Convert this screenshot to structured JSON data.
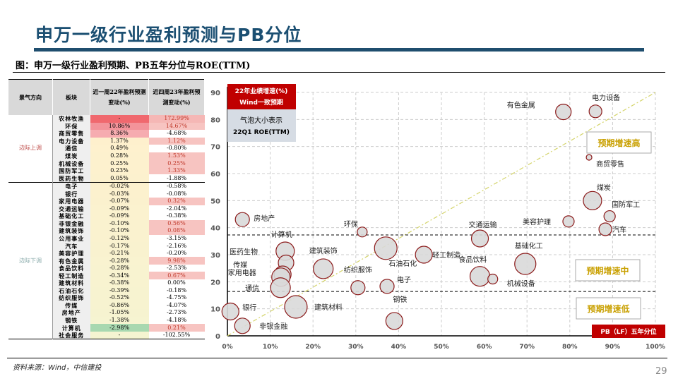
{
  "header": {
    "title": "申万一级行业盈利预测与PB分位",
    "subtitle": "图：申万一级行业盈利预期、PB五年分位与ROE(TTM)"
  },
  "table": {
    "columns": [
      "景气方向",
      "板块",
      "近一周22年盈利预测变动(%)",
      "近四周23年盈利预测变动(%)"
    ],
    "groups": [
      {
        "direction": "边际上调",
        "rows": [
          [
            "农林牧渔",
            "-",
            "172.99%"
          ],
          [
            "环保",
            "10.86%",
            "14.67%"
          ],
          [
            "商贸零售",
            "8.36%",
            "-4.68%"
          ],
          [
            "电力设备",
            "1.37%",
            "1.12%"
          ],
          [
            "通信",
            "0.49%",
            "-0.80%"
          ],
          [
            "煤炭",
            "0.28%",
            "1.53%"
          ],
          [
            "机械设备",
            "0.25%",
            "0.25%"
          ],
          [
            "国防军工",
            "0.23%",
            "1.33%"
          ],
          [
            "医药生物",
            "0.05%",
            "-1.88%"
          ]
        ]
      },
      {
        "direction": "边际下调",
        "rows": [
          [
            "电子",
            "-0.02%",
            "-0.58%"
          ],
          [
            "银行",
            "-0.03%",
            "-0.08%"
          ],
          [
            "家用电器",
            "-0.07%",
            "0.32%"
          ],
          [
            "交通运输",
            "-0.09%",
            "-2.04%"
          ],
          [
            "基础化工",
            "-0.09%",
            "-0.38%"
          ],
          [
            "非银金融",
            "-0.10%",
            "0.56%"
          ],
          [
            "建筑装饰",
            "-0.10%",
            "0.08%"
          ],
          [
            "公用事业",
            "-0.12%",
            "-3.15%"
          ],
          [
            "汽车",
            "-0.17%",
            "-2.16%"
          ],
          [
            "美容护理",
            "-0.21%",
            "-0.20%"
          ],
          [
            "有色金属",
            "-0.28%",
            "9.98%"
          ],
          [
            "食品饮料",
            "-0.28%",
            "-2.53%"
          ],
          [
            "轻工制造",
            "-0.34%",
            "0.67%"
          ],
          [
            "建筑材料",
            "-0.38%",
            "0.00%"
          ],
          [
            "石油石化",
            "-0.39%",
            "-0.18%"
          ],
          [
            "纺织服饰",
            "-0.52%",
            "-4.75%"
          ],
          [
            "传媒",
            "-0.86%",
            "-4.07%"
          ],
          [
            "房地产",
            "-1.05%",
            "-2.73%"
          ],
          [
            "钢铁",
            "-1.38%",
            "-4.18%"
          ],
          [
            "计算机",
            "-2.98%",
            "0.21%"
          ],
          [
            "社会服务",
            "-",
            "-102.55%"
          ]
        ]
      }
    ]
  },
  "chart_data": {
    "type": "scatter",
    "xlabel": "PB（LF）五年分位",
    "ylabel": "22年业绩增速(%) Wind一致预期",
    "ylabel_line1": "22年业绩增速(%)",
    "ylabel_line2": "Wind一致预期",
    "size_note_line1": "气泡大小表示",
    "size_note_line2": "22Q1 ROE(TTM)",
    "xlim": [
      0,
      100
    ],
    "ylim": [
      0,
      90
    ],
    "x_ticks": [
      "0%",
      "10%",
      "20%",
      "30%",
      "40%",
      "50%",
      "60%",
      "70%",
      "80%",
      "90%",
      "100%"
    ],
    "y_ticks": [
      "0",
      "10",
      "20",
      "30",
      "40",
      "50",
      "60",
      "70",
      "80",
      "90"
    ],
    "grid": true,
    "thresholds": [
      37.3,
      16.4
    ],
    "zones": [
      "预期增速高",
      "预期增速中",
      "预期增速低"
    ],
    "colors": {
      "bubble_fill": "#d9d9d9",
      "bubble_stroke": "#8b1a1a",
      "accent_red": "#c00000",
      "zone_text": "#c9a000",
      "trend": "#d4d46a"
    },
    "points": [
      {
        "name": "有色金属",
        "x": 78.5,
        "y": 82.8,
        "size": 11
      },
      {
        "name": "电力设备",
        "x": 86,
        "y": 83,
        "size": 9
      },
      {
        "name": "商贸零售",
        "x": 84.5,
        "y": 66,
        "size": 4
      },
      {
        "name": "煤炭",
        "x": 85.3,
        "y": 50,
        "size": 13
      },
      {
        "name": "国防军工",
        "x": 89.3,
        "y": 44.2,
        "size": 8
      },
      {
        "name": "汽车",
        "x": 88.3,
        "y": 39.4,
        "size": 9
      },
      {
        "name": "美容护理",
        "x": 79.7,
        "y": 42.3,
        "size": 8
      },
      {
        "name": "交通运输",
        "x": 59,
        "y": 36,
        "size": 12
      },
      {
        "name": "基础化工",
        "x": 69.6,
        "y": 26.6,
        "size": 15
      },
      {
        "name": "食品饮料",
        "x": 59,
        "y": 22,
        "size": 14
      },
      {
        "name": "机械设备",
        "x": 62,
        "y": 21,
        "size": 7
      },
      {
        "name": "环保",
        "x": 31.5,
        "y": 38.4,
        "size": 7
      },
      {
        "name": "房地产",
        "x": 3.5,
        "y": 43,
        "size": 10
      },
      {
        "name": "计算机",
        "x": 13.5,
        "y": 31.3,
        "size": 13
      },
      {
        "name": "医药生物",
        "x": 13.7,
        "y": 27,
        "size": 11
      },
      {
        "name": "传媒",
        "x": 12.9,
        "y": 22.7,
        "size": 12
      },
      {
        "name": "家用电器",
        "x": 12.5,
        "y": 21.7,
        "size": 13
      },
      {
        "name": "通信",
        "x": 12.4,
        "y": 17.8,
        "size": 14
      },
      {
        "name": "建筑装饰",
        "x": 22.4,
        "y": 24.8,
        "size": 14
      },
      {
        "name": "石油石化",
        "x": 37,
        "y": 32.4,
        "size": 16
      },
      {
        "name": "轻工制造",
        "x": 45.9,
        "y": 30,
        "size": 12
      },
      {
        "name": "纺织服饰",
        "x": 30.5,
        "y": 17.8,
        "size": 10
      },
      {
        "name": "电子",
        "x": 37.3,
        "y": 18.3,
        "size": 10
      },
      {
        "name": "钢铁",
        "x": 39,
        "y": 5.5,
        "size": 12
      },
      {
        "name": "建筑材料",
        "x": 16,
        "y": 10.7,
        "size": 16
      },
      {
        "name": "银行",
        "x": 0.7,
        "y": 9,
        "size": 12
      },
      {
        "name": "非银金融",
        "x": 3.5,
        "y": 3.7,
        "size": 11
      }
    ]
  },
  "footer": {
    "source": "资料来源：Wind，中信建投",
    "page": "29"
  }
}
